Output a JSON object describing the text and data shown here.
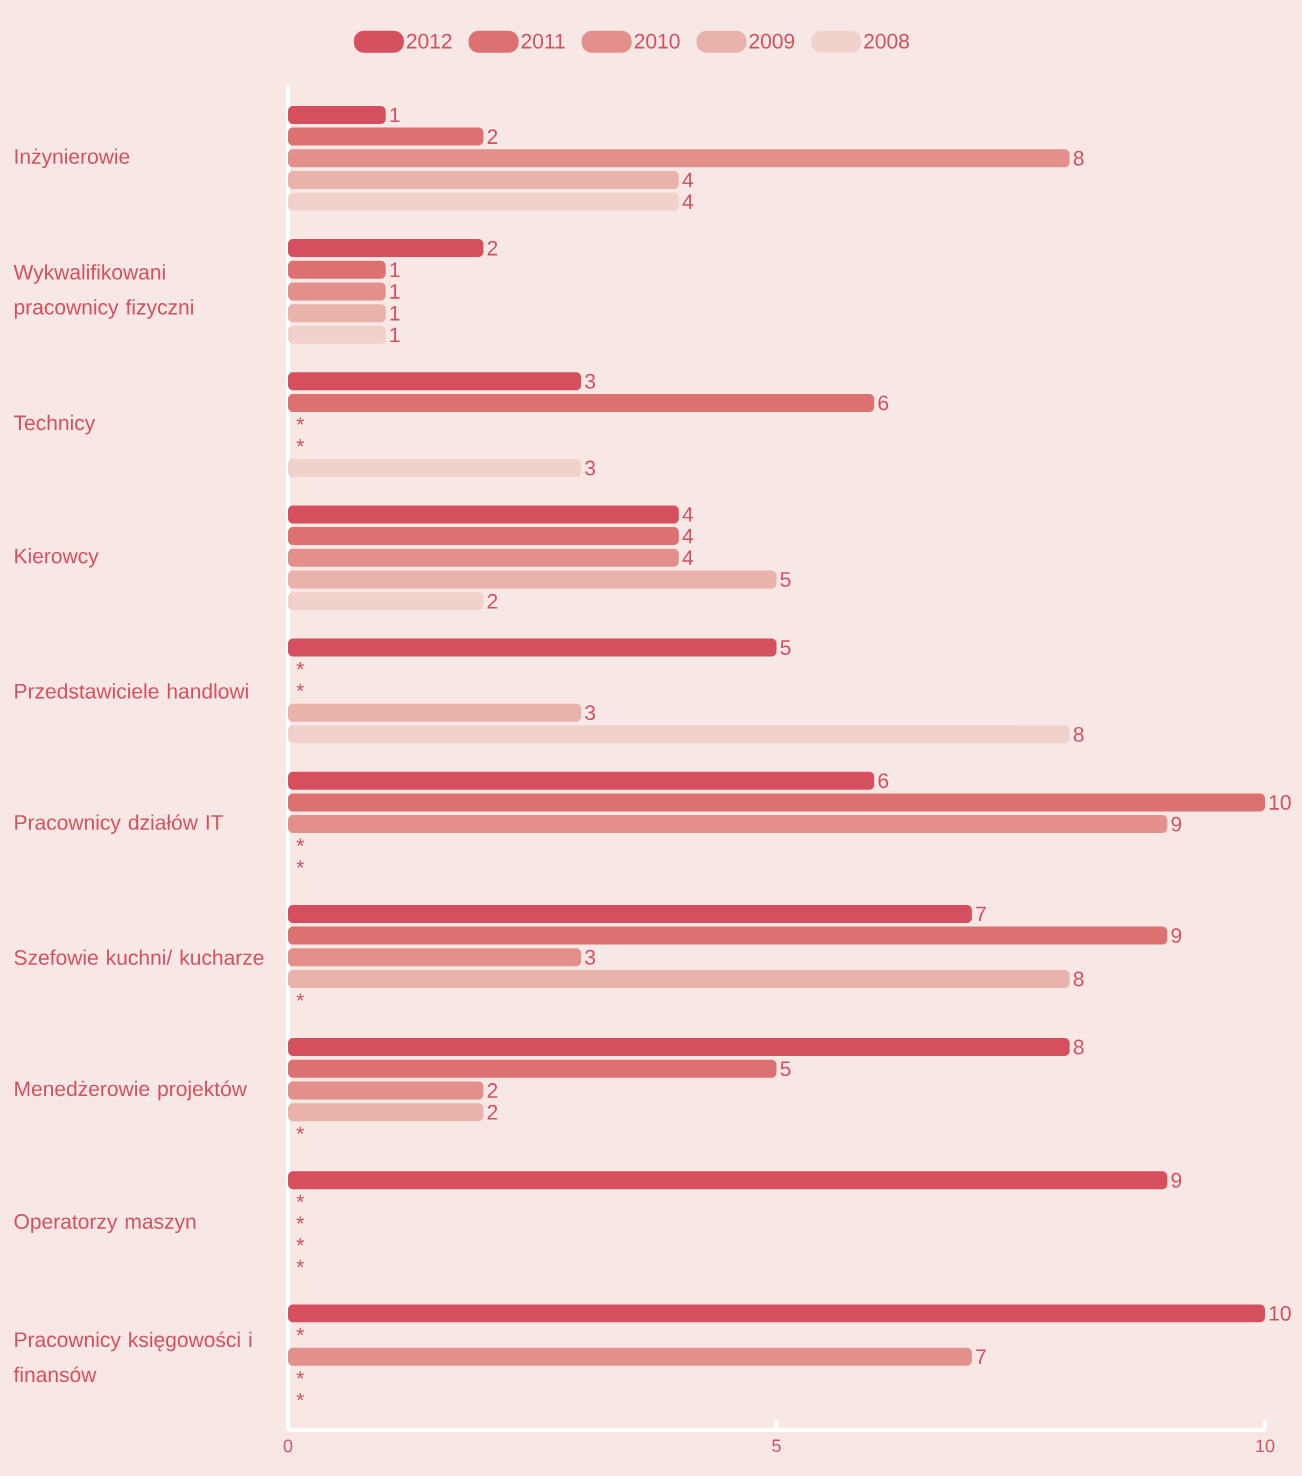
{
  "chart_data": {
    "type": "bar",
    "orientation": "horizontal",
    "legend": "top",
    "categories": [
      "Inżynierowie",
      "Wykwalifikowani pracownicy fizyczni",
      "Technicy",
      "Kierowcy",
      "Przedstawiciele handlowi",
      "Pracownicy działów IT",
      "Szefowie kuchni/ kucharze",
      "Menedżerowie projektów",
      "Operatorzy maszyn",
      "Pracownicy księgowości i finansów"
    ],
    "xlim": [
      0,
      10
    ],
    "xticks": [
      0,
      5,
      10
    ],
    "series": [
      {
        "name": "2012",
        "color": "#d64f5e",
        "values": [
          1,
          2,
          3,
          4,
          5,
          6,
          7,
          8,
          9,
          10
        ],
        "value_labels": [
          "1",
          "2",
          "3",
          "4",
          "5",
          "6",
          "7",
          "8",
          "9",
          "10"
        ]
      },
      {
        "name": "2011",
        "color": "#dd7070",
        "values": [
          2,
          1,
          6,
          4,
          null,
          10,
          9,
          5,
          null,
          null
        ],
        "value_labels": [
          "2",
          "1",
          "6",
          "4",
          "*",
          "10",
          "9",
          "5",
          "*",
          "*"
        ]
      },
      {
        "name": "2010",
        "color": "#e3908c",
        "values": [
          8,
          1,
          null,
          4,
          null,
          9,
          3,
          2,
          null,
          7
        ],
        "value_labels": [
          "8",
          "1",
          "*",
          "4",
          "*",
          "9",
          "3",
          "2",
          "*",
          "7"
        ]
      },
      {
        "name": "2009",
        "color": "#e9b3ab",
        "values": [
          4,
          1,
          null,
          5,
          3,
          null,
          8,
          2,
          null,
          null
        ],
        "value_labels": [
          "4",
          "1",
          "*",
          "5",
          "3",
          "*",
          "8",
          "2",
          "*",
          "*"
        ]
      },
      {
        "name": "2008",
        "color": "#f1d1cc",
        "values": [
          4,
          1,
          3,
          2,
          8,
          null,
          null,
          null,
          null,
          null
        ],
        "value_labels": [
          "4",
          "1",
          "3",
          "2",
          "8",
          "*",
          "*",
          "*",
          "*",
          "*"
        ]
      }
    ]
  }
}
